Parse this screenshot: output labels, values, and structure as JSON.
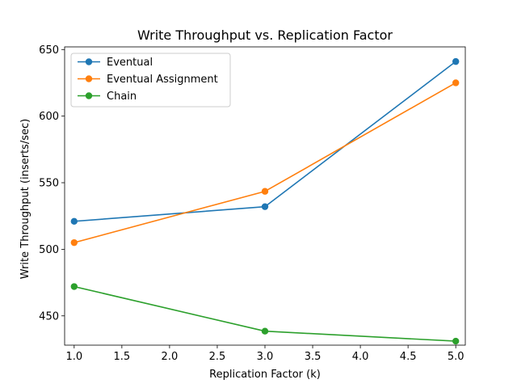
{
  "chart_data": {
    "type": "line",
    "title": "Write Throughput vs. Replication Factor",
    "xlabel": "Replication Factor (k)",
    "ylabel": "Write Throughput (inserts/sec)",
    "xlim": [
      0.9,
      5.1
    ],
    "ylim": [
      428,
      652
    ],
    "x_ticks": [
      1.0,
      1.5,
      2.0,
      2.5,
      3.0,
      3.5,
      4.0,
      4.5,
      5.0
    ],
    "x_tick_labels": [
      "1.0",
      "1.5",
      "2.0",
      "2.5",
      "3.0",
      "3.5",
      "4.0",
      "4.5",
      "5.0"
    ],
    "y_ticks": [
      450,
      500,
      550,
      600,
      650
    ],
    "y_tick_labels": [
      "450",
      "500",
      "550",
      "600",
      "650"
    ],
    "x": [
      1,
      3,
      5
    ],
    "series": [
      {
        "name": "Eventual",
        "values": [
          521,
          532,
          641
        ],
        "color": "#1f77b4"
      },
      {
        "name": "Eventual Assignment",
        "values": [
          505,
          543.5,
          625
        ],
        "color": "#ff7f0e"
      },
      {
        "name": "Chain",
        "values": [
          472,
          438.5,
          431
        ],
        "color": "#2ca02c"
      }
    ],
    "grid": false,
    "legend_position": "top-left",
    "marker": "circle"
  }
}
